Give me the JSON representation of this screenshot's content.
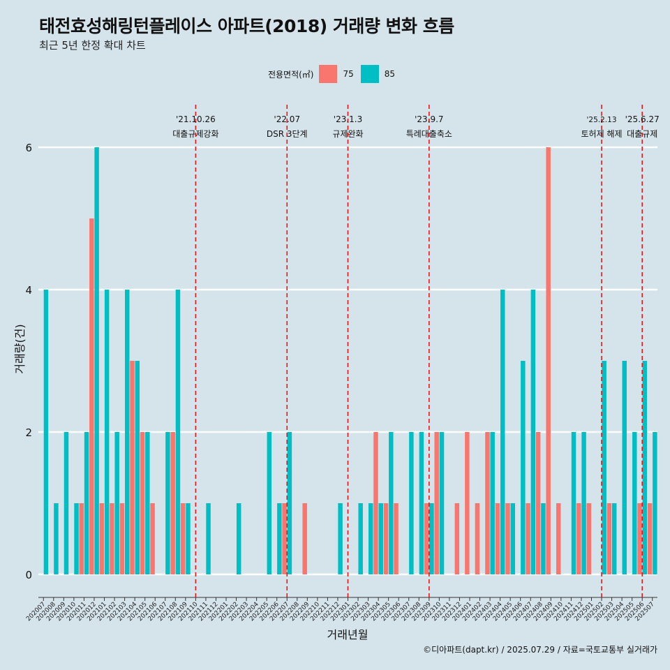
{
  "header": {
    "title": "태전효성해링턴플레이스 아파트(2018) 거래량 변화 흐름",
    "subtitle": "최근 5년 한정 확대 차트"
  },
  "legend": {
    "title": "전용면적(㎡)",
    "items": [
      {
        "label": "75",
        "color": "#f8766d"
      },
      {
        "label": "85",
        "color": "#00bfc4"
      }
    ]
  },
  "caption": "©디아파트(dapt.kr) / 2025.07.29 / 자료=국토교통부 실거래가",
  "chart_data": {
    "type": "bar",
    "title": "태전효성해링턴플레이스 아파트(2018) 거래량 변화 흐름",
    "xlabel": "거래년월",
    "ylabel": "거래량(건)",
    "ylim": [
      0,
      6
    ],
    "yticks": [
      0,
      2,
      4,
      6
    ],
    "categories": [
      "202007",
      "202008",
      "202009",
      "202010",
      "202011",
      "202012",
      "202101",
      "202102",
      "202103",
      "202104",
      "202105",
      "202106",
      "202107",
      "202108",
      "202109",
      "202110",
      "202111",
      "202112",
      "202201",
      "202202",
      "202203",
      "202204",
      "202205",
      "202206",
      "202207",
      "202208",
      "202209",
      "202210",
      "202211",
      "202212",
      "202301",
      "202302",
      "202303",
      "202304",
      "202305",
      "202306",
      "202307",
      "202308",
      "202309",
      "202310",
      "202311",
      "202312",
      "202401",
      "202402",
      "202403",
      "202404",
      "202405",
      "202406",
      "202407",
      "202408",
      "202409",
      "202410",
      "202411",
      "202412",
      "202501",
      "202502",
      "202503",
      "202504",
      "202505",
      "202506",
      "202507"
    ],
    "series": [
      {
        "name": "75",
        "color": "#f8766d",
        "values": [
          0,
          0,
          0,
          0,
          1,
          5,
          1,
          1,
          1,
          3,
          2,
          1,
          0,
          2,
          1,
          0,
          0,
          0,
          0,
          0,
          0,
          0,
          0,
          0,
          1,
          0,
          1,
          0,
          0,
          0,
          0,
          0,
          0,
          2,
          1,
          1,
          0,
          0,
          1,
          2,
          0,
          1,
          2,
          1,
          2,
          1,
          1,
          0,
          1,
          2,
          6,
          1,
          0,
          1,
          1,
          0,
          1,
          0,
          0,
          1,
          1
        ]
      },
      {
        "name": "85",
        "color": "#00bfc4",
        "values": [
          4,
          1,
          2,
          1,
          2,
          6,
          4,
          2,
          4,
          3,
          2,
          0,
          2,
          4,
          1,
          0,
          1,
          0,
          0,
          1,
          0,
          0,
          2,
          1,
          2,
          0,
          0,
          0,
          0,
          1,
          0,
          1,
          1,
          1,
          2,
          0,
          2,
          2,
          1,
          2,
          0,
          0,
          0,
          0,
          2,
          4,
          1,
          3,
          4,
          1,
          0,
          0,
          2,
          2,
          0,
          3,
          1,
          3,
          2,
          3,
          2
        ]
      }
    ],
    "events": [
      {
        "date": "'21.10.26",
        "label": "대출규제강화",
        "after": "202110"
      },
      {
        "date": "'22.07",
        "label": "DSR 3단계",
        "after": "202207"
      },
      {
        "date": "'23.1.3",
        "label": "규제완화",
        "after": "202301"
      },
      {
        "date": "'23.9.7",
        "label": "특례대출축소",
        "after": "202309"
      },
      {
        "date": "'25.2.13",
        "label": "토허제 해제",
        "after": "202502"
      },
      {
        "date": "'25.6.27",
        "label": "대출규제",
        "after": "202506"
      }
    ]
  }
}
